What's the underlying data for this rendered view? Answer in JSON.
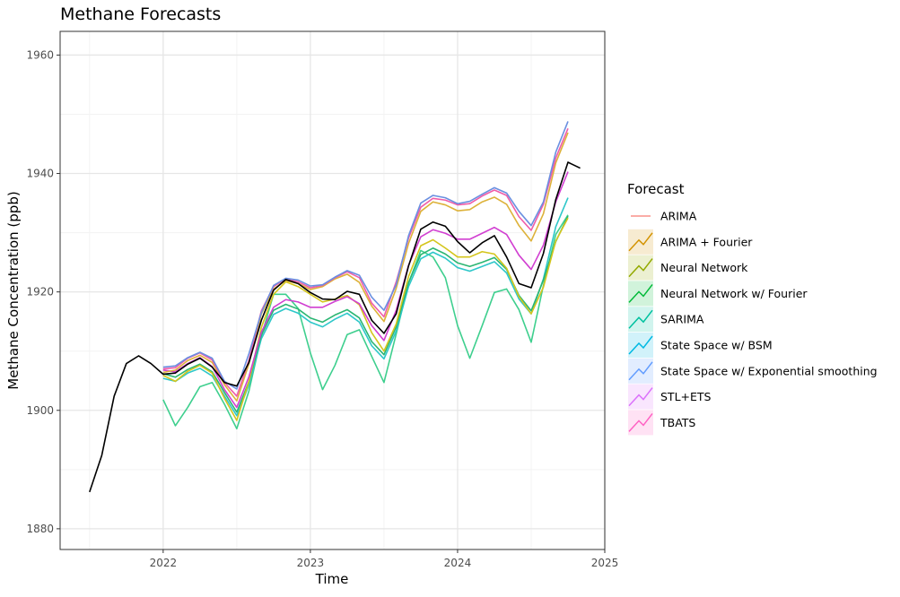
{
  "chart_data": {
    "type": "line",
    "title": "Methane Forecasts",
    "xlabel": "Time",
    "ylabel": "Methane Concentration (ppb)",
    "xlim": [
      2021.3,
      2025.0
    ],
    "ylim": [
      1876.5,
      1964.0
    ],
    "x_ticks": [
      {
        "value": 2022,
        "label": "2022"
      },
      {
        "value": 2023,
        "label": "2023"
      },
      {
        "value": 2024,
        "label": "2024"
      },
      {
        "value": 2025,
        "label": "2025"
      }
    ],
    "y_ticks": [
      {
        "value": 1880,
        "label": "1880"
      },
      {
        "value": 1900,
        "label": "1900"
      },
      {
        "value": 1920,
        "label": "1920"
      },
      {
        "value": 1940,
        "label": "1940"
      },
      {
        "value": 1960,
        "label": "1960"
      }
    ],
    "grid": true,
    "legend": {
      "title": "Forecast",
      "placement": "right",
      "items": [
        {
          "label": "ARIMA",
          "color": "#F8766D"
        },
        {
          "label": "ARIMA + Fourier",
          "color": "#D39200"
        },
        {
          "label": "Neural Network",
          "color": "#93AA00"
        },
        {
          "label": "Neural Network w/ Fourier",
          "color": "#00BA38"
        },
        {
          "label": "SARIMA",
          "color": "#00C19F"
        },
        {
          "label": "State Space w/ BSM",
          "color": "#00B9E3"
        },
        {
          "label": "State Space w/ Exponential smoothing",
          "color": "#619CFF"
        },
        {
          "label": "STL+ETS",
          "color": "#DB72FB"
        },
        {
          "label": "TBATS",
          "color": "#FF61C3"
        }
      ]
    },
    "series": [
      {
        "name": "",
        "color": "#000000",
        "x": [
          2021.5,
          2021.583,
          2021.667,
          2021.75,
          2021.833,
          2021.917,
          2022.0,
          2022.083,
          2022.167,
          2022.25,
          2022.333,
          2022.417,
          2022.5,
          2022.583,
          2022.667,
          2022.75,
          2022.833,
          2022.917,
          2023.0,
          2023.083,
          2023.167,
          2023.25,
          2023.333,
          2023.417,
          2023.5,
          2023.583,
          2023.667,
          2023.75,
          2023.833,
          2023.917,
          2024.0,
          2024.083,
          2024.167,
          2024.25,
          2024.333,
          2024.417,
          2024.5,
          2024.583,
          2024.667,
          2024.75,
          2024.833
        ],
        "values": [
          1886.2,
          1892.4,
          1902.4,
          1907.9,
          1909.2,
          1907.9,
          1906.1,
          1906.3,
          1907.8,
          1908.8,
          1907.3,
          1904.7,
          1904.1,
          1908.1,
          1915.2,
          1920.3,
          1922.1,
          1921.4,
          1919.9,
          1918.8,
          1918.7,
          1920.1,
          1919.6,
          1915.2,
          1913.0,
          1916.3,
          1924.4,
          1930.6,
          1931.8,
          1931.1,
          1928.5,
          1926.6,
          1928.3,
          1929.5,
          1925.9,
          1921.4,
          1920.7,
          1926.5,
          1935.6,
          1941.9,
          1940.9
        ]
      },
      {
        "name": "",
        "color": "#3ECF8E",
        "x": [
          2022.0,
          2022.083,
          2022.167,
          2022.25,
          2022.333,
          2022.417,
          2022.5,
          2022.583,
          2022.667,
          2022.75,
          2022.833,
          2022.917,
          2023.0,
          2023.083,
          2023.167,
          2023.25,
          2023.333,
          2023.417,
          2023.5,
          2023.583,
          2023.667,
          2023.75,
          2023.833,
          2023.917,
          2024.0,
          2024.083,
          2024.167,
          2024.25,
          2024.333,
          2024.417,
          2024.5,
          2024.583,
          2024.667,
          2024.75
        ],
        "values": [
          1901.8,
          1897.4,
          1900.5,
          1904.0,
          1904.7,
          1901.0,
          1896.9,
          1903.3,
          1912.5,
          1919.6,
          1919.6,
          1917.2,
          1909.7,
          1903.5,
          1907.6,
          1912.8,
          1913.6,
          1909.1,
          1904.7,
          1912.9,
          1921.5,
          1927.0,
          1925.9,
          1922.4,
          1914.3,
          1908.8,
          1914.3,
          1919.9,
          1920.5,
          1917.0,
          1911.5,
          1921.1,
          1929.7,
          1933.0
        ]
      },
      {
        "name": "",
        "color": "#2EC7C9",
        "x": [
          2022.0,
          2022.083,
          2022.167,
          2022.25,
          2022.333,
          2022.417,
          2022.5,
          2022.583,
          2022.667,
          2022.75,
          2022.833,
          2022.917,
          2023.0,
          2023.083,
          2023.167,
          2023.25,
          2023.333,
          2023.417,
          2023.5,
          2023.583,
          2023.667,
          2023.75,
          2023.833,
          2023.917,
          2024.0,
          2024.083,
          2024.167,
          2024.25,
          2024.333,
          2024.417,
          2024.5,
          2024.583,
          2024.667,
          2024.75
        ],
        "values": [
          1905.4,
          1904.9,
          1906.3,
          1907.1,
          1905.8,
          1902.4,
          1899.1,
          1904.3,
          1912.1,
          1916.2,
          1917.2,
          1916.4,
          1914.9,
          1914.1,
          1915.4,
          1916.4,
          1914.9,
          1910.9,
          1908.7,
          1913.4,
          1920.9,
          1925.6,
          1926.7,
          1925.7,
          1924.1,
          1923.5,
          1924.3,
          1925.1,
          1923.2,
          1918.8,
          1916.3,
          1922.2,
          1931.0,
          1935.9
        ]
      },
      {
        "name": "",
        "color": "#2BB673",
        "x": [
          2022.0,
          2022.083,
          2022.167,
          2022.25,
          2022.333,
          2022.417,
          2022.5,
          2022.583,
          2022.667,
          2022.75,
          2022.833,
          2022.917,
          2023.0,
          2023.083,
          2023.167,
          2023.25,
          2023.333,
          2023.417,
          2023.5,
          2023.583,
          2023.667,
          2023.75,
          2023.833,
          2023.917,
          2024.0,
          2024.083,
          2024.167,
          2024.25,
          2024.333,
          2024.417,
          2024.5,
          2024.583,
          2024.667,
          2024.75
        ],
        "values": [
          1906.2,
          1905.6,
          1906.9,
          1907.8,
          1906.5,
          1903.0,
          1899.7,
          1904.9,
          1912.7,
          1916.9,
          1917.9,
          1917.1,
          1915.6,
          1914.9,
          1916.1,
          1917.0,
          1915.6,
          1911.6,
          1909.4,
          1914.1,
          1921.6,
          1926.3,
          1927.4,
          1926.4,
          1924.9,
          1924.3,
          1925.0,
          1925.8,
          1923.8,
          1919.4,
          1916.8,
          1922.0,
          1928.5,
          1932.8
        ]
      },
      {
        "name": "",
        "color": "#D4C51C",
        "x": [
          2022.0,
          2022.083,
          2022.167,
          2022.25,
          2022.333,
          2022.417,
          2022.5,
          2022.583,
          2022.667,
          2022.75,
          2022.833,
          2022.917,
          2023.0,
          2023.083,
          2023.167,
          2023.25,
          2023.333,
          2023.417,
          2023.5,
          2023.583,
          2023.667,
          2023.75,
          2023.833,
          2023.917,
          2024.0,
          2024.083,
          2024.167,
          2024.25,
          2024.333,
          2024.417,
          2024.5,
          2024.583,
          2024.667,
          2024.75
        ],
        "values": [
          1905.9,
          1904.9,
          1906.6,
          1907.6,
          1906.3,
          1902.0,
          1898.3,
          1904.9,
          1914.0,
          1919.6,
          1921.7,
          1920.9,
          1919.6,
          1918.3,
          1918.8,
          1919.4,
          1917.8,
          1913.1,
          1910.0,
          1914.6,
          1922.6,
          1927.8,
          1928.8,
          1927.4,
          1925.9,
          1925.9,
          1926.8,
          1926.4,
          1924.0,
          1919.2,
          1916.3,
          1920.8,
          1928.6,
          1932.5
        ]
      },
      {
        "name": "",
        "color": "#D13FD1",
        "x": [
          2022.0,
          2022.083,
          2022.167,
          2022.25,
          2022.333,
          2022.417,
          2022.5,
          2022.583,
          2022.667,
          2022.75,
          2022.833,
          2022.917,
          2023.0,
          2023.083,
          2023.167,
          2023.25,
          2023.333,
          2023.417,
          2023.5,
          2023.583,
          2023.667,
          2023.75,
          2023.833,
          2023.917,
          2024.0,
          2024.083,
          2024.167,
          2024.25,
          2024.333,
          2024.417,
          2024.5,
          2024.583,
          2024.667,
          2024.75
        ],
        "values": [
          1906.8,
          1906.5,
          1907.9,
          1908.9,
          1907.4,
          1903.5,
          1900.5,
          1905.7,
          1913.2,
          1917.4,
          1918.7,
          1918.3,
          1917.4,
          1917.4,
          1918.4,
          1919.2,
          1918.0,
          1914.3,
          1911.8,
          1916.9,
          1924.5,
          1929.3,
          1930.5,
          1929.9,
          1928.9,
          1928.9,
          1929.9,
          1930.9,
          1929.7,
          1926.2,
          1923.8,
          1927.9,
          1935.2,
          1940.3
        ]
      },
      {
        "name": "",
        "color": "#DDB23A",
        "x": [
          2022.0,
          2022.083,
          2022.167,
          2022.25,
          2022.333,
          2022.417,
          2022.5,
          2022.583,
          2022.667,
          2022.75,
          2022.833,
          2022.917,
          2023.0,
          2023.083,
          2023.167,
          2023.25,
          2023.333,
          2023.417,
          2023.5,
          2023.583,
          2023.667,
          2023.75,
          2023.833,
          2023.917,
          2024.0,
          2024.083,
          2024.167,
          2024.25,
          2024.333,
          2024.417,
          2024.5,
          2024.583,
          2024.667,
          2024.75
        ],
        "values": [
          1906.4,
          1906.8,
          1908.4,
          1909.3,
          1908.1,
          1904.3,
          1901.6,
          1907.9,
          1916.3,
          1920.5,
          1921.9,
          1921.4,
          1920.4,
          1920.9,
          1922.2,
          1923.0,
          1921.6,
          1917.6,
          1915.0,
          1920.6,
          1928.2,
          1933.6,
          1935.2,
          1934.7,
          1933.7,
          1933.9,
          1935.2,
          1936.0,
          1934.8,
          1931.2,
          1928.6,
          1933.2,
          1941.8,
          1946.9
        ]
      },
      {
        "name": "",
        "color": "#EF5DA8",
        "x": [
          2022.0,
          2022.083,
          2022.167,
          2022.25,
          2022.333,
          2022.417,
          2022.5,
          2022.583,
          2022.667,
          2022.75,
          2022.833,
          2022.917,
          2023.0,
          2023.083,
          2023.167,
          2023.25,
          2023.333,
          2023.417,
          2023.5,
          2023.583,
          2023.667,
          2023.75,
          2023.833,
          2023.917,
          2024.0,
          2024.083,
          2024.167,
          2024.25,
          2024.333,
          2024.417,
          2024.5,
          2024.583,
          2024.667,
          2024.75
        ],
        "values": [
          1907.0,
          1907.2,
          1908.8,
          1909.7,
          1908.5,
          1904.7,
          1902.4,
          1908.5,
          1916.8,
          1920.9,
          1922.2,
          1921.7,
          1920.7,
          1921.1,
          1922.4,
          1923.4,
          1922.4,
          1918.1,
          1915.8,
          1921.7,
          1929.1,
          1934.3,
          1935.8,
          1935.5,
          1934.7,
          1934.9,
          1936.2,
          1937.2,
          1936.3,
          1932.7,
          1930.4,
          1934.8,
          1942.6,
          1947.6
        ]
      },
      {
        "name": "",
        "color": "#6A8FE0",
        "x": [
          2022.0,
          2022.083,
          2022.167,
          2022.25,
          2022.333,
          2022.417,
          2022.5,
          2022.583,
          2022.667,
          2022.75,
          2022.833,
          2022.917,
          2023.0,
          2023.083,
          2023.167,
          2023.25,
          2023.333,
          2023.417,
          2023.5,
          2023.583,
          2023.667,
          2023.75,
          2023.833,
          2023.917,
          2024.0,
          2024.083,
          2024.167,
          2024.25,
          2024.333,
          2024.417,
          2024.5,
          2024.583,
          2024.667,
          2024.75
        ],
        "values": [
          1907.3,
          1907.5,
          1908.9,
          1909.8,
          1908.8,
          1904.9,
          1903.6,
          1909.6,
          1916.5,
          1921.1,
          1922.3,
          1922.0,
          1921.0,
          1921.2,
          1922.5,
          1923.6,
          1922.8,
          1919.1,
          1916.9,
          1921.2,
          1929.5,
          1935.0,
          1936.3,
          1935.9,
          1934.9,
          1935.3,
          1936.5,
          1937.6,
          1936.7,
          1933.6,
          1931.2,
          1935.2,
          1943.6,
          1948.8
        ]
      }
    ]
  }
}
